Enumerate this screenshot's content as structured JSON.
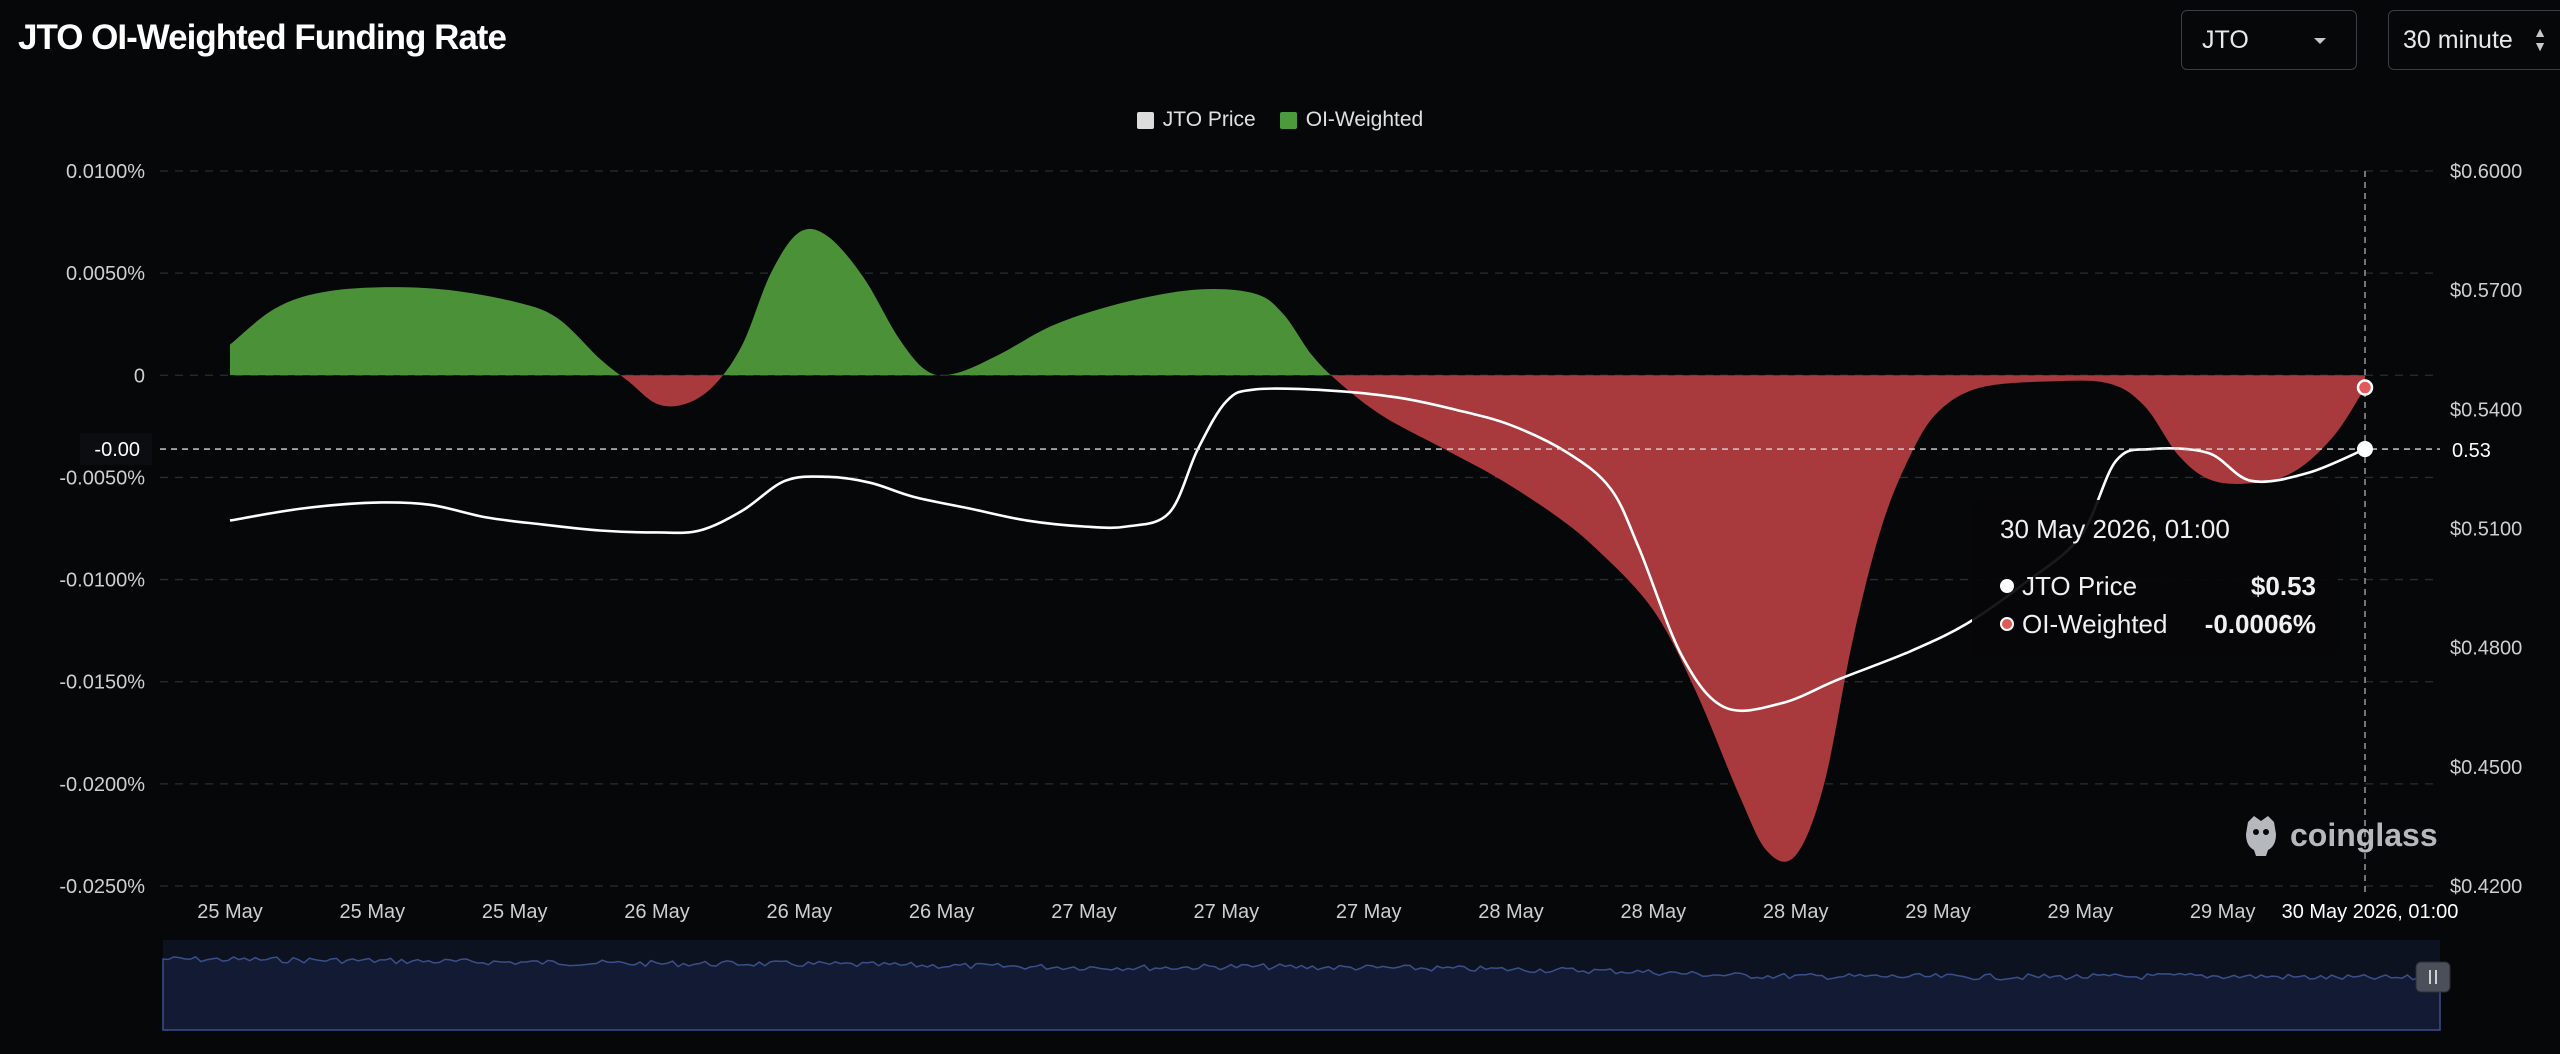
{
  "header": {
    "title": "JTO OI-Weighted Funding Rate",
    "symbol_select": "JTO",
    "interval_select": "30 minute"
  },
  "legend": [
    {
      "label": "JTO Price",
      "color": "#dcdcdc"
    },
    {
      "label": "OI-Weighted",
      "color": "#4d9a3d"
    }
  ],
  "colors": {
    "positive": "#4a9138",
    "negative": "#a8393c",
    "price_line": "#ffffff"
  },
  "tooltip": {
    "title": "30 May 2026, 01:00",
    "rows": [
      {
        "label": "JTO Price",
        "value": "$0.53",
        "dot": "#ffffff"
      },
      {
        "label": "OI-Weighted",
        "value": "-0.0006%",
        "dot": "#e05a5a"
      }
    ]
  },
  "crosshair": {
    "left_label": "-0.00",
    "right_label": "0.53",
    "x_label": "30 May 2026, 01:00"
  },
  "watermark": "coinglass",
  "chart_data": {
    "type": "area",
    "x_ticks": [
      "25 May",
      "25 May",
      "25 May",
      "26 May",
      "26 May",
      "26 May",
      "27 May",
      "27 May",
      "27 May",
      "28 May",
      "28 May",
      "28 May",
      "29 May",
      "29 May",
      "29 May"
    ],
    "y_left": {
      "ticks": [
        "0.0100%",
        "0.0050%",
        "0",
        "-0.0050%",
        "-0.0100%",
        "-0.0150%",
        "-0.0200%",
        "-0.0250%"
      ],
      "range": [
        -0.025,
        0.01
      ]
    },
    "y_right": {
      "ticks": [
        "$0.6000",
        "$0.5700",
        "$0.5400",
        "$0.5100",
        "$0.4800",
        "$0.4500",
        "$0.4200"
      ],
      "range": [
        0.42,
        0.6
      ]
    },
    "x_range": [
      0,
      15
    ],
    "series": [
      {
        "name": "OI-Weighted",
        "axis": "left",
        "points": [
          [
            0,
            0.0015
          ],
          [
            0.3,
            0.0032
          ],
          [
            0.6,
            0.004
          ],
          [
            1,
            0.0043
          ],
          [
            1.5,
            0.0042
          ],
          [
            2,
            0.0036
          ],
          [
            2.3,
            0.0028
          ],
          [
            2.6,
            0.0008
          ],
          [
            2.8,
            -0.0003
          ],
          [
            3,
            -0.0014
          ],
          [
            3.2,
            -0.0014
          ],
          [
            3.4,
            -0.0005
          ],
          [
            3.6,
            0.0015
          ],
          [
            3.8,
            0.005
          ],
          [
            4,
            0.007
          ],
          [
            4.2,
            0.0068
          ],
          [
            4.45,
            0.0048
          ],
          [
            4.7,
            0.0018
          ],
          [
            4.9,
            0.0002
          ],
          [
            5.1,
            0.0001
          ],
          [
            5.4,
            0.001
          ],
          [
            5.8,
            0.0025
          ],
          [
            6.3,
            0.0036
          ],
          [
            6.8,
            0.0042
          ],
          [
            7.2,
            0.004
          ],
          [
            7.4,
            0.003
          ],
          [
            7.6,
            0.001
          ],
          [
            7.8,
            -0.0004
          ],
          [
            8.1,
            -0.002
          ],
          [
            8.5,
            -0.0035
          ],
          [
            8.9,
            -0.005
          ],
          [
            9.3,
            -0.0068
          ],
          [
            9.6,
            -0.0085
          ],
          [
            10,
            -0.0115
          ],
          [
            10.3,
            -0.0155
          ],
          [
            10.6,
            -0.0205
          ],
          [
            10.8,
            -0.0233
          ],
          [
            11,
            -0.0235
          ],
          [
            11.2,
            -0.02
          ],
          [
            11.4,
            -0.013
          ],
          [
            11.6,
            -0.0075
          ],
          [
            11.8,
            -0.004
          ],
          [
            12,
            -0.0018
          ],
          [
            12.3,
            -0.0006
          ],
          [
            12.8,
            -0.0003
          ],
          [
            13.2,
            -0.0004
          ],
          [
            13.45,
            -0.0015
          ],
          [
            13.7,
            -0.004
          ],
          [
            13.95,
            -0.0052
          ],
          [
            14.3,
            -0.0052
          ],
          [
            14.55,
            -0.0045
          ],
          [
            14.8,
            -0.0028
          ],
          [
            15,
            -0.0006
          ]
        ]
      },
      {
        "name": "JTO Price",
        "axis": "right",
        "points": [
          [
            0,
            0.512
          ],
          [
            0.5,
            0.515
          ],
          [
            1,
            0.5165
          ],
          [
            1.4,
            0.516
          ],
          [
            1.8,
            0.5128
          ],
          [
            2.2,
            0.511
          ],
          [
            2.6,
            0.5095
          ],
          [
            3,
            0.509
          ],
          [
            3.3,
            0.5095
          ],
          [
            3.6,
            0.5145
          ],
          [
            3.9,
            0.522
          ],
          [
            4.2,
            0.523
          ],
          [
            4.5,
            0.5215
          ],
          [
            4.8,
            0.518
          ],
          [
            5.2,
            0.515
          ],
          [
            5.6,
            0.512
          ],
          [
            6,
            0.5105
          ],
          [
            6.3,
            0.5105
          ],
          [
            6.6,
            0.514
          ],
          [
            6.8,
            0.53
          ],
          [
            7,
            0.542
          ],
          [
            7.2,
            0.545
          ],
          [
            7.7,
            0.5448
          ],
          [
            8.2,
            0.543
          ],
          [
            8.6,
            0.54
          ],
          [
            9,
            0.536
          ],
          [
            9.4,
            0.529
          ],
          [
            9.7,
            0.52
          ],
          [
            9.9,
            0.505
          ],
          [
            10.2,
            0.478
          ],
          [
            10.5,
            0.465
          ],
          [
            10.9,
            0.466
          ],
          [
            11.3,
            0.472
          ],
          [
            11.8,
            0.479
          ],
          [
            12.2,
            0.486
          ],
          [
            12.6,
            0.496
          ],
          [
            13,
            0.508
          ],
          [
            13.25,
            0.527
          ],
          [
            13.5,
            0.53
          ],
          [
            13.9,
            0.529
          ],
          [
            14.2,
            0.522
          ],
          [
            14.6,
            0.524
          ],
          [
            15,
            0.53
          ]
        ]
      }
    ],
    "grid": true,
    "legend_position": "top-center",
    "navigator": true
  }
}
